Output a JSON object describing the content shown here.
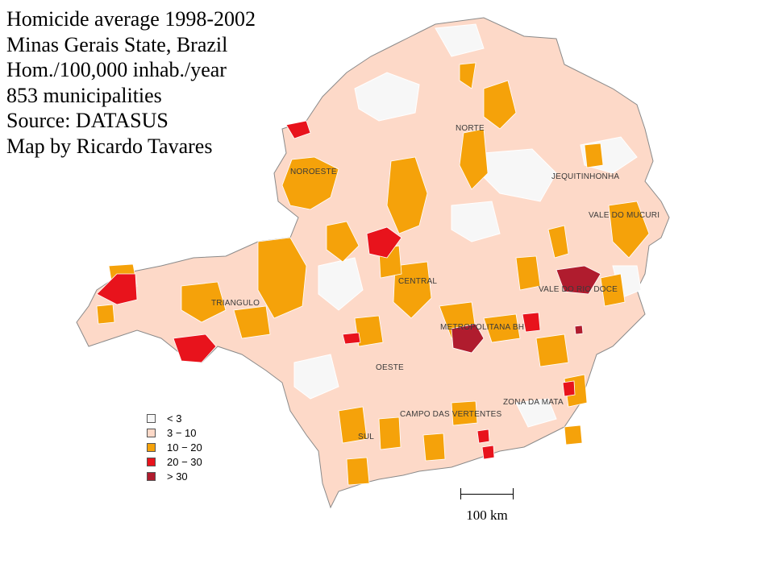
{
  "title_lines": [
    "Homicide average 1998-2002",
    "Minas Gerais State, Brazil",
    "Hom./100,000 inhab./year",
    "853 municipalities",
    "Source: DATASUS",
    "Map by Ricardo Tavares"
  ],
  "regions": {
    "noroeste": "NOROESTE",
    "norte": "NORTE",
    "jequitinhonha": "JEQUITINHONHA",
    "vale_do_mucuri": "VALE DO MUCURI",
    "central": "CENTRAL",
    "vale_do_rio_doce": "VALE DO RIO DOCE",
    "triangulo": "TRIANGULO",
    "metropolitana": "METROPOLITANA BH",
    "oeste": "OESTE",
    "zona_da_mata": "ZONA DA MATA",
    "campo_das_vertentes": "CAMPO DAS VERTENTES",
    "sul": "SUL"
  },
  "legend": [
    {
      "label": "< 3",
      "color": "#f7f7f7"
    },
    {
      "label": "3 − 10",
      "color": "#fdd9c8"
    },
    {
      "label": "10 − 20",
      "color": "#f5a20a"
    },
    {
      "label": "20 − 30",
      "color": "#e8131c"
    },
    {
      "label": "> 30",
      "color": "#b01c2e"
    }
  ],
  "scale_label": "100 km",
  "colors": {
    "lt3": "#f7f7f7",
    "c3_10": "#fdd9c8",
    "c10_20": "#f5a20a",
    "c20_30": "#e8131c",
    "gt30": "#b01c2e",
    "boundary": "#ffffff",
    "outline": "#8a8a8a"
  }
}
